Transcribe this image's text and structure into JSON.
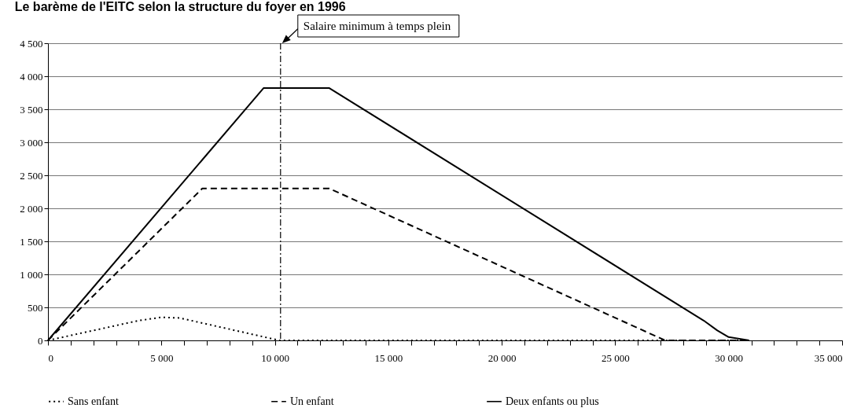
{
  "chart_data": {
    "type": "line",
    "title": "Le barème de l'EITC selon la structure du foyer en 1996",
    "xlim": [
      0,
      35000
    ],
    "xticks": [
      0,
      {
        "value": 1000,
        "label": null
      },
      {
        "value": 2000,
        "label": null
      },
      {
        "value": 3000,
        "label": null
      },
      {
        "value": 4000,
        "label": null
      },
      {
        "value": 5000,
        "label": "5 000"
      },
      {
        "value": 6000,
        "label": null
      },
      {
        "value": 7000,
        "label": null
      },
      {
        "value": 8000,
        "label": null
      },
      {
        "value": 9000,
        "label": null
      },
      {
        "value": 10000,
        "label": "10 000"
      },
      {
        "value": 11000,
        "label": null
      },
      {
        "value": 12000,
        "label": null
      },
      {
        "value": 13000,
        "label": null
      },
      {
        "value": 14000,
        "label": null
      },
      {
        "value": 15000,
        "label": "15 000"
      },
      {
        "value": 16000,
        "label": null
      },
      {
        "value": 17000,
        "label": null
      },
      {
        "value": 18000,
        "label": null
      },
      {
        "value": 19000,
        "label": null
      },
      {
        "value": 20000,
        "label": "20 000"
      },
      {
        "value": 21000,
        "label": null
      },
      {
        "value": 22000,
        "label": null
      },
      {
        "value": 23000,
        "label": null
      },
      {
        "value": 24000,
        "label": null
      },
      {
        "value": 25000,
        "label": "25 000"
      },
      {
        "value": 26000,
        "label": null
      },
      {
        "value": 27000,
        "label": null
      },
      {
        "value": 28000,
        "label": null
      },
      {
        "value": 29000,
        "label": null
      },
      {
        "value": 30000,
        "label": "30 000"
      },
      {
        "value": 31000,
        "label": null
      },
      {
        "value": 32000,
        "label": null
      },
      {
        "value": 33000,
        "label": null
      },
      {
        "value": 34000,
        "label": null
      },
      {
        "value": 35000,
        "label": "35 000"
      }
    ],
    "ylim": [
      0,
      4500
    ],
    "yticks": [
      0,
      500,
      {
        "value": 1000,
        "label": "1 000"
      },
      {
        "value": 1500,
        "label": "1 500"
      },
      {
        "value": 2000,
        "label": "2 000"
      },
      {
        "value": 2500,
        "label": "2 500"
      },
      {
        "value": 3000,
        "label": "3 000"
      },
      {
        "value": 3500,
        "label": "3 500"
      },
      {
        "value": 4000,
        "label": "4 000"
      },
      {
        "value": 4500,
        "label": "4 500"
      }
    ],
    "grid": "y",
    "legend": "bottom",
    "series": [
      {
        "name": "Sans enfant",
        "color": "#000000",
        "line_style": "dotted",
        "x": [
          0,
          4000,
          5000,
          5800,
          10200,
          30900
        ],
        "values": [
          0,
          300,
          350,
          340,
          0,
          0
        ]
      },
      {
        "name": "Un enfant",
        "color": "#000000",
        "line_style": "dashed",
        "x": [
          0,
          6800,
          12400,
          27200,
          30900
        ],
        "values": [
          0,
          2300,
          2300,
          0,
          0
        ]
      },
      {
        "name": "Deux enfants ou plus",
        "color": "#000000",
        "line_style": "solid",
        "x": [
          0,
          9500,
          12400,
          28900,
          29500,
          30000,
          30900
        ],
        "values": [
          0,
          3820,
          3820,
          300,
          150,
          50,
          0
        ]
      }
    ],
    "ref_lines": [
      {
        "axis": "x",
        "value": 10250,
        "label": "Salaire minimum à temps plein",
        "color": "#000000",
        "line_style": "dashdot"
      }
    ]
  }
}
